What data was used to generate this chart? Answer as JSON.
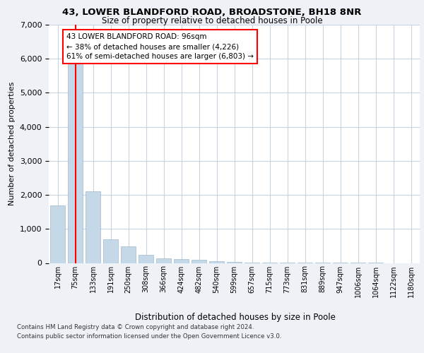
{
  "title1": "43, LOWER BLANDFORD ROAD, BROADSTONE, BH18 8NR",
  "title2": "Size of property relative to detached houses in Poole",
  "xlabel": "Distribution of detached houses by size in Poole",
  "ylabel": "Number of detached properties",
  "categories": [
    "17sqm",
    "75sqm",
    "133sqm",
    "191sqm",
    "250sqm",
    "308sqm",
    "366sqm",
    "424sqm",
    "482sqm",
    "540sqm",
    "599sqm",
    "657sqm",
    "715sqm",
    "773sqm",
    "831sqm",
    "889sqm",
    "947sqm",
    "1006sqm",
    "1064sqm",
    "1122sqm",
    "1180sqm"
  ],
  "values": [
    1700,
    6000,
    2100,
    700,
    480,
    240,
    145,
    110,
    100,
    55,
    30,
    15,
    10,
    5,
    3,
    2,
    1,
    1,
    1,
    0,
    0
  ],
  "bar_color": "#c5d8e8",
  "bar_edgecolor": "#a0b8cc",
  "redline_x": 1,
  "annotation_text": "43 LOWER BLANDFORD ROAD: 96sqm\n← 38% of detached houses are smaller (4,226)\n61% of semi-detached houses are larger (6,803) →",
  "annotation_box_color": "white",
  "annotation_box_edgecolor": "red",
  "ylim": [
    0,
    7000
  ],
  "yticks": [
    0,
    1000,
    2000,
    3000,
    4000,
    5000,
    6000,
    7000
  ],
  "footer1": "Contains HM Land Registry data © Crown copyright and database right 2024.",
  "footer2": "Contains public sector information licensed under the Open Government Licence v3.0.",
  "background_color": "#eef2f7",
  "plot_background": "white",
  "grid_color": "#c8d4e0"
}
